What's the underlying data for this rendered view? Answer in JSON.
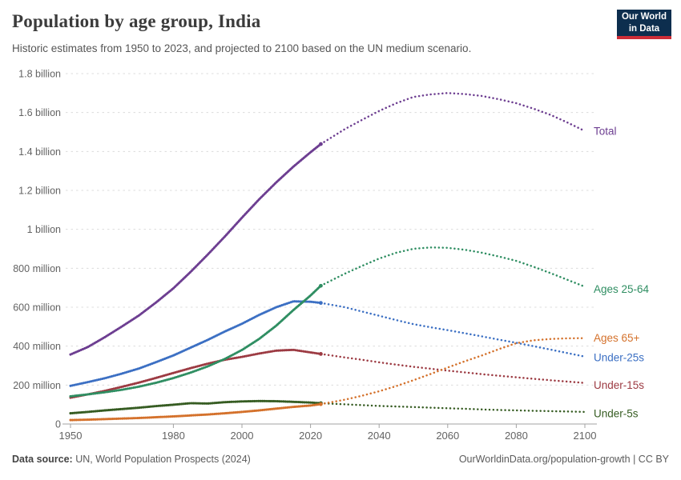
{
  "header": {
    "title": "Population by age group, India",
    "subtitle": "Historic estimates from 1950 to 2023, and projected to 2100 based on the UN medium scenario.",
    "logo": {
      "line1": "Our World",
      "line2": "in Data",
      "bg": "#0d2e4e",
      "accent": "#cd2d37"
    }
  },
  "chart_data": {
    "type": "line",
    "title": "Population by age group, India",
    "xlabel": "",
    "ylabel": "",
    "xlim": [
      1950,
      2100
    ],
    "ylim": [
      0,
      1800
    ],
    "grid": true,
    "legend_position": "right-edge-labels",
    "units": "millions",
    "projection_start": 2023,
    "x": [
      1950,
      1955,
      1960,
      1965,
      1970,
      1975,
      1980,
      1985,
      1990,
      1995,
      2000,
      2005,
      2010,
      2015,
      2020,
      2023,
      2030,
      2035,
      2040,
      2045,
      2050,
      2055,
      2060,
      2065,
      2070,
      2075,
      2080,
      2085,
      2090,
      2095,
      2100
    ],
    "series": [
      {
        "name": "Total",
        "color": "#6d3e91",
        "values": [
          357,
          395,
          446,
          501,
          558,
          625,
          697,
          781,
          870,
          963,
          1060,
          1154,
          1241,
          1322,
          1396,
          1438,
          1515,
          1562,
          1608,
          1648,
          1680,
          1693,
          1700,
          1695,
          1685,
          1668,
          1648,
          1620,
          1588,
          1548,
          1505
        ]
      },
      {
        "name": "Ages 25-64",
        "color": "#2f8e62",
        "values": [
          142,
          152,
          163,
          176,
          192,
          212,
          236,
          264,
          296,
          334,
          380,
          437,
          505,
          585,
          660,
          710,
          772,
          812,
          850,
          880,
          900,
          907,
          905,
          895,
          880,
          860,
          838,
          808,
          775,
          740,
          705
        ]
      },
      {
        "name": "Ages 65+",
        "color": "#d4712b",
        "values": [
          20,
          22,
          25,
          28,
          31,
          35,
          39,
          44,
          49,
          55,
          62,
          70,
          79,
          88,
          95,
          102,
          125,
          145,
          168,
          195,
          225,
          257,
          290,
          322,
          352,
          385,
          415,
          430,
          437,
          440,
          441
        ]
      },
      {
        "name": "Under-25s",
        "color": "#3b6fc3",
        "values": [
          196,
          215,
          235,
          259,
          285,
          318,
          352,
          392,
          432,
          475,
          515,
          560,
          600,
          630,
          628,
          622,
          600,
          578,
          556,
          534,
          513,
          497,
          482,
          466,
          450,
          433,
          417,
          400,
          382,
          364,
          346
        ]
      },
      {
        "name": "Under-15s",
        "color": "#9c3a42",
        "values": [
          135,
          152,
          170,
          191,
          213,
          237,
          262,
          287,
          310,
          330,
          345,
          362,
          377,
          381,
          368,
          360,
          342,
          330,
          317,
          305,
          294,
          284,
          274,
          265,
          256,
          248,
          240,
          232,
          225,
          218,
          211
        ]
      },
      {
        "name": "Under-5s",
        "color": "#365c22",
        "values": [
          55,
          62,
          70,
          77,
          84,
          92,
          99,
          107,
          105,
          112,
          116,
          118,
          117,
          114,
          110,
          107,
          101,
          97,
          93,
          90,
          87,
          84,
          81,
          78,
          75,
          72,
          70,
          68,
          66,
          64,
          62
        ]
      }
    ],
    "yticks": [
      {
        "value": 0,
        "label": "0"
      },
      {
        "value": 200,
        "label": "200 million"
      },
      {
        "value": 400,
        "label": "400 million"
      },
      {
        "value": 600,
        "label": "600 million"
      },
      {
        "value": 800,
        "label": "800 million"
      },
      {
        "value": 1000,
        "label": "1 billion"
      },
      {
        "value": 1200,
        "label": "1.2 billion"
      },
      {
        "value": 1400,
        "label": "1.4 billion"
      },
      {
        "value": 1600,
        "label": "1.6 billion"
      },
      {
        "value": 1800,
        "label": "1.8 billion"
      }
    ],
    "xticks": [
      1950,
      1980,
      2000,
      2020,
      2040,
      2060,
      2080,
      2100
    ]
  },
  "footer": {
    "source_label": "Data source:",
    "source_text": " UN, World Population Prospects (2024)",
    "right_text": "OurWorldinData.org/population-growth | CC BY"
  }
}
